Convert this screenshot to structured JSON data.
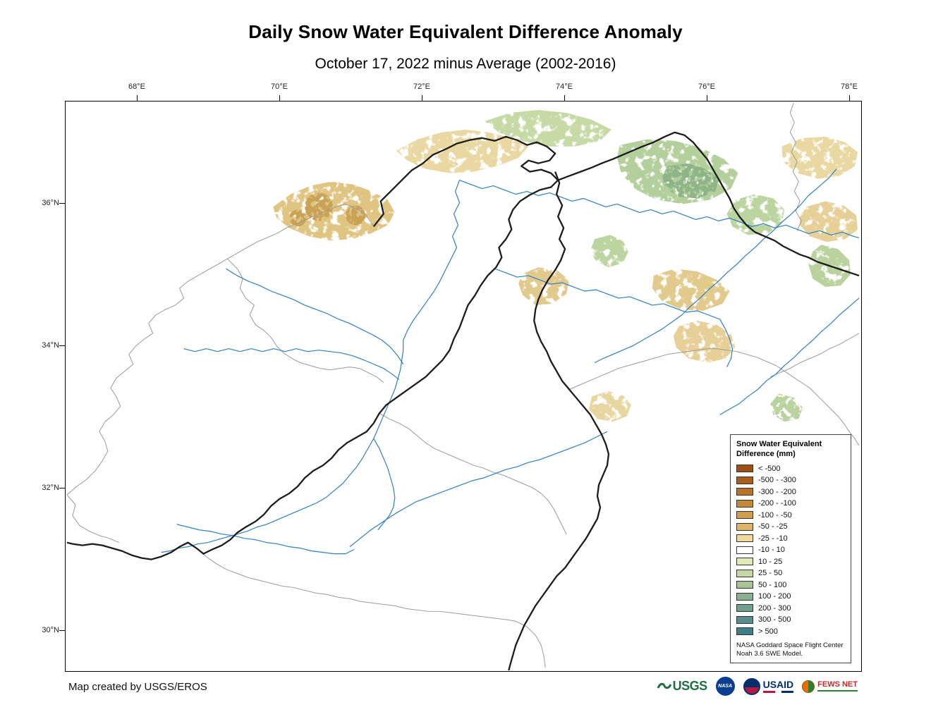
{
  "title": "Daily Snow Water Equivalent Difference Anomaly",
  "subtitle": "October 17, 2022 minus Average (2002-2016)",
  "map": {
    "x_ticks": [
      "68°E",
      "70°E",
      "72°E",
      "74°E",
      "76°E",
      "78°E"
    ],
    "y_ticks": [
      "36°N",
      "34°N",
      "32°N",
      "30°N"
    ]
  },
  "legend": {
    "title": "Snow Water Equivalent\nDifference (mm)",
    "entries": [
      {
        "label": "< -500",
        "color": "#9e4f14"
      },
      {
        "label": "-500 - -300",
        "color": "#aa5e1d"
      },
      {
        "label": "-300 - -200",
        "color": "#b77327"
      },
      {
        "label": "-200 - -100",
        "color": "#c48938"
      },
      {
        "label": "-100 - -50",
        "color": "#d19f4b"
      },
      {
        "label": "-50 - -25",
        "color": "#deb566"
      },
      {
        "label": "-25 - -10",
        "color": "#edd89d"
      },
      {
        "label": "-10 - 10",
        "color": "#ffffff"
      },
      {
        "label": "10 - 25",
        "color": "#e1e9b6"
      },
      {
        "label": "25 - 50",
        "color": "#c7d8a5"
      },
      {
        "label": "50 - 100",
        "color": "#a9c298"
      },
      {
        "label": "100 - 200",
        "color": "#8cb093"
      },
      {
        "label": "200 - 300",
        "color": "#709e90"
      },
      {
        "label": "300 - 500",
        "color": "#588f8d"
      },
      {
        "label": "> 500",
        "color": "#407f86"
      }
    ],
    "footnote": "NASA Goddard Space Flight Center\nNoah 3.6 SWE Model."
  },
  "footer": {
    "credit": "Map created by USGS/EROS",
    "logos": [
      "USGS",
      "NASA",
      "USAID",
      "FEWS NET"
    ]
  }
}
